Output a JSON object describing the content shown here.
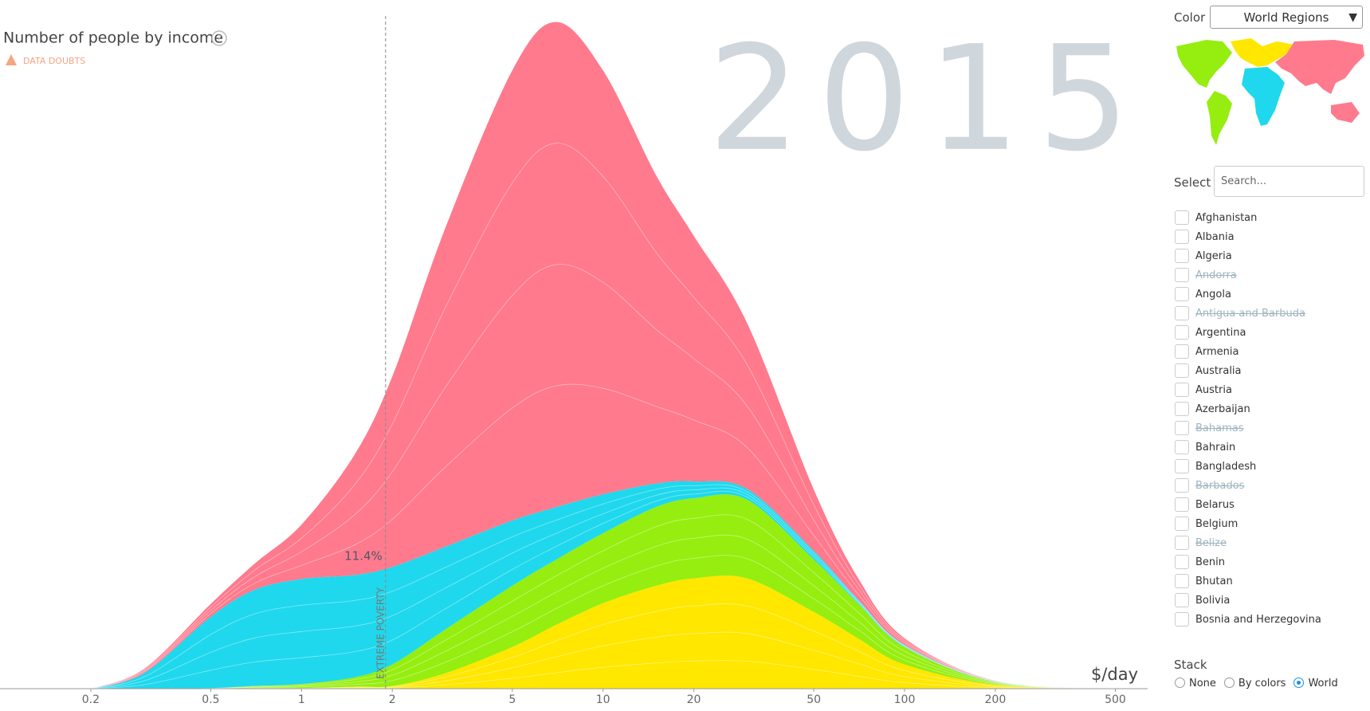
{
  "chart_data": {
    "type": "area",
    "title": "Number of people by income",
    "warning": "DATA DOUBTS",
    "year": "2015",
    "x_unit": "$/day",
    "x": [
      0.2,
      0.3,
      0.5,
      0.7,
      1,
      1.5,
      2,
      3,
      5,
      7,
      10,
      15,
      20,
      30,
      50,
      70,
      100,
      200,
      500
    ],
    "series": [
      {
        "color": "#ffe700",
        "values": [
          0,
          0,
          0,
          0.1,
          0.1,
          0.3,
          0.4,
          2.3,
          6.2,
          9.5,
          12.7,
          15.3,
          16.4,
          16.4,
          11.4,
          7.5,
          3.6,
          0.6,
          0
        ]
      },
      {
        "color": "#95ee0f",
        "values": [
          0,
          0,
          0.1,
          0.3,
          0.6,
          1.4,
          3.2,
          6.5,
          9.1,
          9.7,
          10.4,
          11.7,
          11.9,
          11.7,
          7.8,
          5.2,
          2.6,
          0.4,
          0
        ]
      },
      {
        "color": "#1fd8ed",
        "values": [
          0,
          2.3,
          10.6,
          14.3,
          15.6,
          15.2,
          14.5,
          12.3,
          9.7,
          7.8,
          5.8,
          3.5,
          2.5,
          1.6,
          1.3,
          0.6,
          0.3,
          0.1,
          0
        ]
      },
      {
        "color": "#ff7a8d",
        "values": [
          0,
          0.6,
          1.9,
          3.9,
          8.1,
          17.9,
          28.3,
          47.4,
          66.9,
          72.1,
          63.0,
          45.8,
          36.5,
          24.7,
          9.1,
          3.2,
          1.0,
          0.1,
          0
        ]
      }
    ],
    "xlim": [
      0.1,
      640
    ],
    "ylim": [
      0,
      100
    ],
    "log_x": true,
    "xticks": [
      0.2,
      0.5,
      1,
      2,
      5,
      10,
      20,
      50,
      100,
      200,
      500
    ],
    "poverty_line": {
      "x": 1.9,
      "label": "EXTREME POVERTY",
      "share": 11.4,
      "share_label": "11.4%"
    }
  },
  "sidebar": {
    "color_label": "Color",
    "color_choice": "World Regions",
    "select_label": "Select",
    "search_placeholder": "Search...",
    "countries": [
      {
        "name": "Afghanistan",
        "available": true
      },
      {
        "name": "Albania",
        "available": true
      },
      {
        "name": "Algeria",
        "available": true
      },
      {
        "name": "Andorra",
        "available": false
      },
      {
        "name": "Angola",
        "available": true
      },
      {
        "name": "Antigua and Barbuda",
        "available": false
      },
      {
        "name": "Argentina",
        "available": true
      },
      {
        "name": "Armenia",
        "available": true
      },
      {
        "name": "Australia",
        "available": true
      },
      {
        "name": "Austria",
        "available": true
      },
      {
        "name": "Azerbaijan",
        "available": true
      },
      {
        "name": "Bahamas",
        "available": false
      },
      {
        "name": "Bahrain",
        "available": true
      },
      {
        "name": "Bangladesh",
        "available": true
      },
      {
        "name": "Barbados",
        "available": false
      },
      {
        "name": "Belarus",
        "available": true
      },
      {
        "name": "Belgium",
        "available": true
      },
      {
        "name": "Belize",
        "available": false
      },
      {
        "name": "Benin",
        "available": true
      },
      {
        "name": "Bhutan",
        "available": true
      },
      {
        "name": "Bolivia",
        "available": true
      },
      {
        "name": "Bosnia and Herzegovina",
        "available": true
      }
    ],
    "stack_label": "Stack",
    "stack_options": [
      "None",
      "By colors",
      "World"
    ],
    "stack_selected": 2
  }
}
